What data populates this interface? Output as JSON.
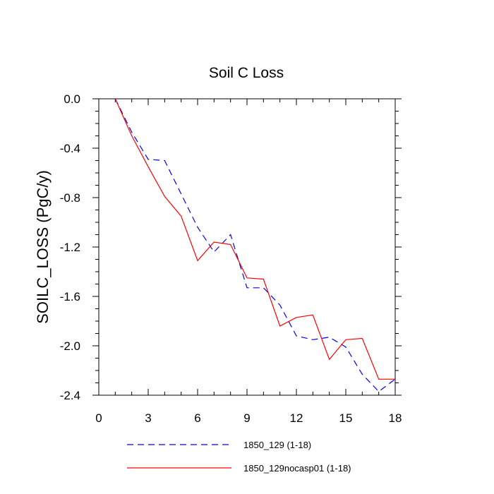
{
  "chart_data": {
    "type": "line",
    "title": "Soil C Loss",
    "xlabel": "",
    "ylabel": "SOILC_LOSS  (PgC/y)",
    "xlim": [
      0,
      18
    ],
    "ylim": [
      -2.4,
      0.0
    ],
    "xticks": [
      0,
      3,
      6,
      9,
      12,
      15,
      18
    ],
    "xtick_labels": [
      "0",
      "3",
      "6",
      "9",
      "12",
      "15",
      "18"
    ],
    "yticks": [
      0.0,
      -0.4,
      -0.8,
      -1.2,
      -1.6,
      -2.0,
      -2.4
    ],
    "ytick_labels": [
      "0.0",
      "-0.4",
      "-0.8",
      "-1.2",
      "-1.6",
      "-2.0",
      "-2.4"
    ],
    "grid": false,
    "legend_position": "bottom",
    "series": [
      {
        "name": "1850_129 (1-18)",
        "color": "#0000ff",
        "dash": "dashed",
        "x": [
          1,
          2,
          3,
          4,
          5,
          6,
          7,
          8,
          9,
          10,
          11,
          12,
          13,
          14,
          15,
          16,
          17,
          18
        ],
        "values": [
          0.0,
          -0.27,
          -0.49,
          -0.5,
          -0.77,
          -1.04,
          -1.24,
          -1.1,
          -1.53,
          -1.53,
          -1.67,
          -1.92,
          -1.95,
          -1.93,
          -2.01,
          -2.23,
          -2.37,
          -2.27
        ]
      },
      {
        "name": "1850_129nocasp01 (1-18)",
        "color": "#ff0000",
        "dash": "solid",
        "x": [
          1,
          2,
          3,
          4,
          5,
          6,
          7,
          8,
          9,
          10,
          11,
          12,
          13,
          14,
          15,
          16,
          17,
          18
        ],
        "values": [
          0.0,
          -0.3,
          -0.55,
          -0.79,
          -0.95,
          -1.31,
          -1.16,
          -1.18,
          -1.45,
          -1.46,
          -1.84,
          -1.77,
          -1.75,
          -2.11,
          -1.95,
          -1.94,
          -2.27,
          -2.27
        ]
      }
    ]
  }
}
